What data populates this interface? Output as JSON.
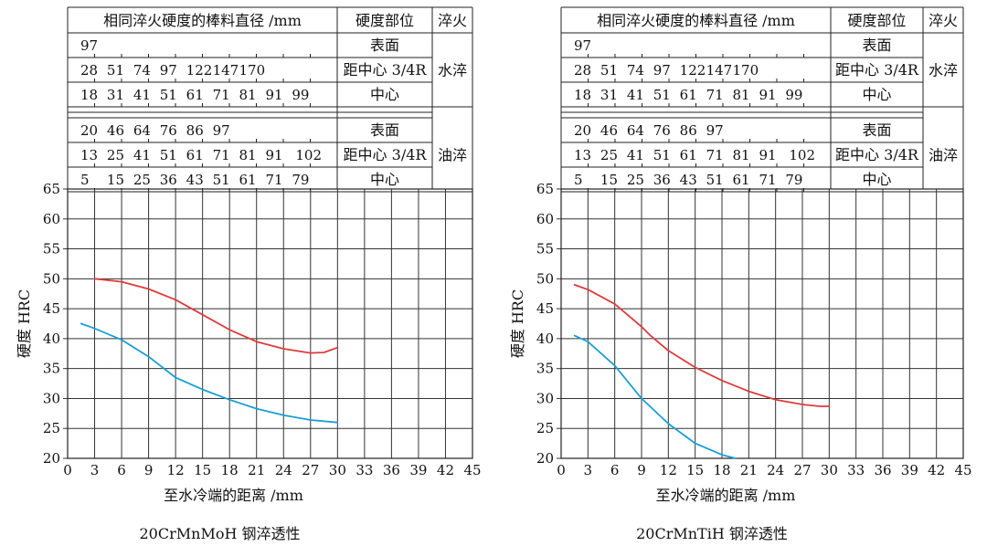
{
  "panels": [
    {
      "table": {
        "headers": [
          "相同淬火硬度的棒料直径 /mm",
          "硬度部位",
          "淬火"
        ],
        "groups": [
          {
            "method": "水淬",
            "rows": [
              {
                "values": [
                  "97"
                ],
                "position": "表面"
              },
              {
                "values": [
                  "28",
                  "51",
                  "74",
                  "97",
                  "122",
                  "147",
                  "170"
                ],
                "position": "距中心 3/4R"
              },
              {
                "values": [
                  "18",
                  "31",
                  "41",
                  "51",
                  "61",
                  "71",
                  "81",
                  "91",
                  "99"
                ],
                "position": "中心"
              }
            ]
          },
          {
            "method": "油淬",
            "rows": [
              {
                "values": [
                  "20",
                  "46",
                  "64",
                  "76",
                  "86",
                  "97"
                ],
                "position": "表面"
              },
              {
                "values": [
                  "13",
                  "25",
                  "41",
                  "51",
                  "61",
                  "71",
                  "81",
                  "91",
                  "102"
                ],
                "position": "距中心 3/4R"
              },
              {
                "values": [
                  "5",
                  "15",
                  "25",
                  "36",
                  "43",
                  "51",
                  "61",
                  "71",
                  "79"
                ],
                "position": "中心"
              }
            ]
          }
        ]
      },
      "chart_data": {
        "type": "line",
        "title": "20CrMnMoH 钢淬透性",
        "xlabel": "至水冷端的距离 /mm",
        "ylabel": "硬度 HRC",
        "xlim": [
          0,
          45
        ],
        "ylim": [
          20,
          65
        ],
        "xticks": [
          0,
          3,
          6,
          9,
          12,
          15,
          18,
          21,
          24,
          27,
          30,
          33,
          36,
          39,
          42,
          45
        ],
        "yticks": [
          20,
          25,
          30,
          35,
          40,
          45,
          50,
          55,
          60,
          65
        ],
        "grid": true,
        "series": [
          {
            "color": "#e03a3a",
            "x": [
              3,
              6,
              9,
              12,
              15,
              18,
              21,
              24,
              27,
              28.5,
              30
            ],
            "y": [
              50,
              49.5,
              48.3,
              46.5,
              44,
              41.5,
              39.5,
              38.3,
              37.6,
              37.7,
              38.5
            ]
          },
          {
            "color": "#1a9fd6",
            "x": [
              1.5,
              3,
              6,
              9,
              12,
              15,
              18,
              21,
              24,
              27,
              30
            ],
            "y": [
              42.5,
              41.7,
              39.8,
              37,
              33.5,
              31.5,
              29.8,
              28.3,
              27.2,
              26.4,
              26
            ]
          }
        ]
      }
    },
    {
      "table": {
        "headers": [
          "相同淬火硬度的棒料直径 /mm",
          "硬度部位",
          "淬火"
        ],
        "groups": [
          {
            "method": "水淬",
            "rows": [
              {
                "values": [
                  "97"
                ],
                "position": "表面"
              },
              {
                "values": [
                  "28",
                  "51",
                  "74",
                  "97",
                  "122",
                  "147",
                  "170"
                ],
                "position": "距中心 3/4R"
              },
              {
                "values": [
                  "18",
                  "31",
                  "41",
                  "51",
                  "61",
                  "71",
                  "81",
                  "91",
                  "99"
                ],
                "position": "中心"
              }
            ]
          },
          {
            "method": "油淬",
            "rows": [
              {
                "values": [
                  "20",
                  "46",
                  "64",
                  "76",
                  "86",
                  "97"
                ],
                "position": "表面"
              },
              {
                "values": [
                  "13",
                  "25",
                  "41",
                  "51",
                  "61",
                  "71",
                  "81",
                  "91",
                  "102"
                ],
                "position": "距中心 3/4R"
              },
              {
                "values": [
                  "5",
                  "15",
                  "25",
                  "36",
                  "43",
                  "51",
                  "61",
                  "71",
                  "79"
                ],
                "position": "中心"
              }
            ]
          }
        ]
      },
      "chart_data": {
        "type": "line",
        "title": "20CrMnTiH 钢淬透性",
        "xlabel": "至水冷端的距离 /mm",
        "ylabel": "硬度 HRC",
        "xlim": [
          0,
          45
        ],
        "ylim": [
          20,
          65
        ],
        "xticks": [
          0,
          3,
          6,
          9,
          12,
          15,
          18,
          21,
          24,
          27,
          30,
          33,
          36,
          39,
          42,
          45
        ],
        "yticks": [
          20,
          25,
          30,
          35,
          40,
          45,
          50,
          55,
          60,
          65
        ],
        "grid": true,
        "series": [
          {
            "color": "#e03a3a",
            "x": [
              1.5,
              3,
              6,
              9,
              10,
              12,
              15,
              18,
              21,
              24,
              27,
              29,
              30
            ],
            "y": [
              49,
              48.2,
              45.8,
              42,
              40.5,
              38,
              35.2,
              33,
              31.2,
              29.8,
              29,
              28.7,
              28.7
            ]
          },
          {
            "color": "#1a9fd6",
            "x": [
              1.5,
              3,
              6,
              9,
              12,
              15,
              18,
              19.5
            ],
            "y": [
              40.5,
              39.5,
              35.5,
              30,
              25.8,
              22.5,
              20.6,
              20
            ]
          }
        ]
      }
    }
  ]
}
